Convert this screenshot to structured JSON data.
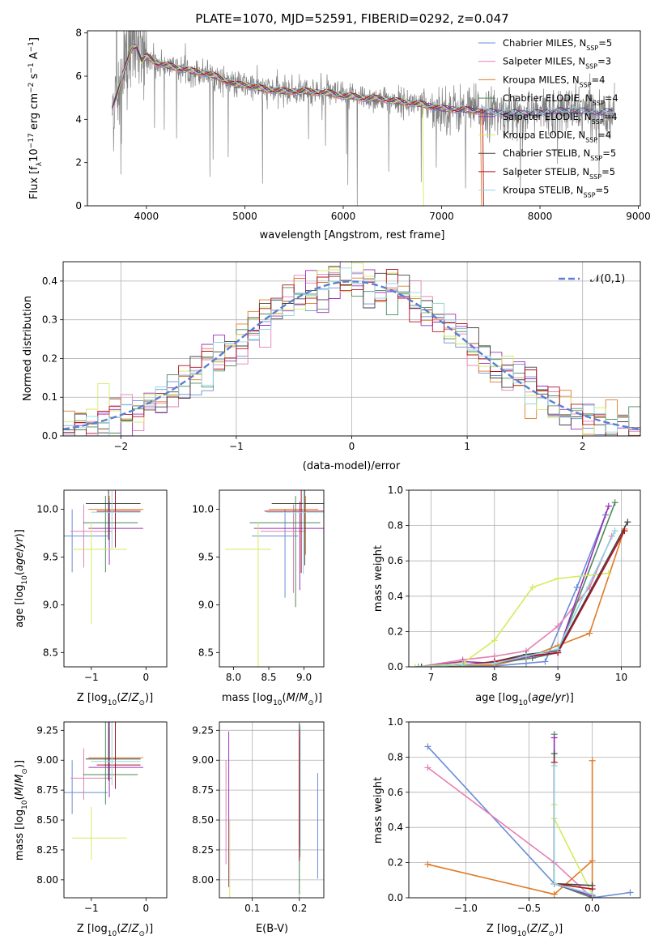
{
  "title": "PLATE=1070, MJD=52591, FIBERID=0292, z=0.047",
  "colors": {
    "Chabrier MILES": "#6a8dd8",
    "Salpeter MILES": "#e57fb5",
    "Kroupa MILES": "#e07b27",
    "Chabrier ELODIE": "#4a8a5a",
    "Salpeter ELODIE": "#9b30b8",
    "Kroupa ELODIE": "#d4ea60",
    "Chabrier STELIB": "#444444",
    "Salpeter STELIB": "#b01020",
    "Kroupa STELIB": "#90d6e0",
    "data": "#808080"
  },
  "legend_names": [
    "Chabrier MILES",
    "Salpeter MILES",
    "Kroupa MILES",
    "Chabrier ELODIE",
    "Salpeter ELODIE",
    "Kroupa ELODIE",
    "Chabrier STELIB",
    "Salpeter STELIB",
    "Kroupa STELIB"
  ],
  "legend_nssp": [
    "5",
    "3",
    "4",
    "4",
    "4",
    "4",
    "5",
    "5",
    "5"
  ],
  "chart_data": [
    {
      "id": "spectrum",
      "type": "line",
      "xlabel": "wavelength [Angstrom, rest frame]",
      "ylabel": "Flux [f_λ10^-17 erg cm^-2 s^-1 A^-1]",
      "xlim": [
        3400,
        9020
      ],
      "ylim": [
        0,
        8.1
      ],
      "xticks": [
        4000,
        5000,
        6000,
        7000,
        8000,
        9000
      ],
      "yticks": [
        0,
        2,
        4,
        6,
        8
      ],
      "legend_position": "upper right",
      "continuum": {
        "x": [
          3650,
          3700,
          3800,
          3850,
          3900,
          3950,
          4000,
          4050,
          4100,
          4200,
          4300,
          4400,
          4500,
          4600,
          4700,
          4800,
          4900,
          5000,
          5200,
          5400,
          5600,
          5800,
          6000,
          6200,
          6400,
          6600,
          6800,
          7000,
          7200,
          7400,
          7600,
          7800,
          8000,
          8200,
          8400,
          8600,
          8760
        ],
        "y": [
          4.6,
          5.2,
          6.6,
          7.3,
          7.4,
          6.7,
          6.9,
          6.8,
          6.6,
          6.5,
          6.4,
          6.3,
          6.2,
          6.15,
          6.0,
          5.8,
          5.6,
          5.6,
          5.4,
          5.3,
          5.3,
          5.25,
          5.1,
          5.0,
          4.95,
          4.8,
          4.7,
          4.5,
          4.45,
          4.4,
          4.3,
          4.3,
          4.3,
          4.4,
          4.4,
          4.3,
          4.4
        ]
      },
      "model_end_wavelength": {
        "Salpeter STELIB": 7420,
        "Kroupa ELODIE": 6810,
        "Kroupa MILES": 7400
      }
    },
    {
      "id": "residuals",
      "type": "bar",
      "xlabel": "(data-model)/error",
      "ylabel": "Normed distribution",
      "xlim": [
        -2.5,
        2.5
      ],
      "ylim": [
        0,
        0.45
      ],
      "xticks": [
        -2,
        -1,
        0,
        1,
        2
      ],
      "yticks": [
        0,
        0.1,
        0.2,
        0.3,
        0.4
      ],
      "bin_width": 0.1,
      "legend": "𝒩(0,1)"
    },
    {
      "id": "age-vs-Z",
      "type": "scatter",
      "xlabel": "Z [log10(Z/Z⊙)]",
      "ylabel": "age  [log10(age/yr)]",
      "xlim": [
        -1.5,
        0.38
      ],
      "ylim": [
        8.35,
        10.2
      ],
      "xticks": [
        -1,
        0
      ],
      "yticks": [
        8.5,
        9.0,
        9.5,
        10.0
      ]
    },
    {
      "id": "age-vs-mass",
      "type": "scatter",
      "xlabel": "mass [log10(M/M⊙)]",
      "ylabel": "",
      "xlim": [
        7.8,
        9.28
      ],
      "ylim": [
        8.35,
        10.2
      ],
      "xticks": [
        8.0,
        8.5,
        9.0
      ],
      "yticks": [
        8.5,
        9.0,
        9.5,
        10.0
      ]
    },
    {
      "id": "weight-vs-age",
      "type": "line",
      "xlabel": "age  [log10(age/yr)]",
      "ylabel": "mass weight",
      "xlim": [
        6.65,
        10.3
      ],
      "ylim": [
        0,
        1.0
      ],
      "xticks": [
        7,
        8,
        9,
        10
      ],
      "yticks": [
        0,
        0.2,
        0.4,
        0.6,
        0.8,
        1.0
      ]
    },
    {
      "id": "mass-vs-Z",
      "type": "scatter",
      "xlabel": "Z [log10(Z/Z⊙)]",
      "ylabel": "mass [log10(M/M⊙)]",
      "xlim": [
        -1.5,
        0.38
      ],
      "ylim": [
        7.85,
        9.32
      ],
      "xticks": [
        -1,
        0
      ],
      "yticks": [
        8.0,
        8.25,
        8.5,
        8.75,
        9.0,
        9.25
      ]
    },
    {
      "id": "mass-vs-ebv",
      "type": "scatter",
      "xlabel": "E(B-V)",
      "ylabel": "",
      "xlim": [
        0.03,
        0.252
      ],
      "ylim": [
        7.85,
        9.32
      ],
      "xticks": [
        0.1,
        0.2
      ],
      "yticks": [
        8.0,
        8.25,
        8.5,
        8.75,
        9.0,
        9.25
      ]
    },
    {
      "id": "weight-vs-Z",
      "type": "line",
      "xlabel": "Z [log10(Z/Z⊙)]",
      "ylabel": "mass weight",
      "xlim": [
        -1.45,
        0.38
      ],
      "ylim": [
        0,
        1.0
      ],
      "xticks": [
        -1.0,
        -0.5,
        0.0
      ],
      "yticks": [
        0,
        0.2,
        0.4,
        0.6,
        0.8,
        1.0
      ]
    }
  ],
  "models": [
    {
      "name": "Chabrier MILES",
      "Z": [
        -1.2,
        0.5,
        0.25
      ],
      "age": [
        9.72,
        0.38,
        0.28
      ],
      "mass": [
        8.73,
        0.18,
        0.27
      ],
      "ebv": [
        0.235,
        0.0,
        0.28
      ],
      "ages": [
        6.85,
        7.5,
        8.0,
        8.5,
        8.8,
        9.3,
        9.75
      ],
      "wts": [
        0.0,
        0.005,
        0.005,
        0.02,
        0.03,
        0.45,
        0.86
      ],
      "Zs": [
        -1.3,
        -0.3,
        0.0,
        0.3,
        0.0
      ],
      "zw": [
        0.86,
        0.08,
        0.0,
        0.03,
        0.0
      ]
    },
    {
      "name": "Salpeter MILES",
      "Z": [
        -1.0,
        0.38,
        0.15
      ],
      "age": [
        9.77,
        0.38,
        0.28
      ],
      "mass": [
        8.85,
        0.18,
        0.25
      ],
      "ebv": [
        0.04,
        0.0,
        0.2
      ],
      "ages": [
        6.8,
        7.5,
        8.0,
        8.5,
        9.0,
        9.5,
        9.85
      ],
      "wts": [
        0.0,
        0.04,
        0.06,
        0.09,
        0.23,
        0.45,
        0.74
      ],
      "Zs": [
        -1.3,
        -0.3,
        0.0,
        0.0
      ],
      "zw": [
        0.74,
        0.2,
        0.0,
        0.0
      ]
    },
    {
      "name": "Kroupa MILES",
      "Z": [
        -0.55,
        0.5,
        0.3
      ],
      "age": [
        10.0,
        0.28,
        0.14
      ],
      "mass": [
        9.02,
        0.2,
        0.26
      ],
      "ebv": [
        0.2,
        0.0,
        0.29
      ],
      "ages": [
        6.8,
        7.2,
        8.0,
        8.5,
        9.0,
        9.5,
        10.05
      ],
      "wts": [
        0.0,
        0.005,
        0.01,
        0.05,
        0.12,
        0.19,
        0.78
      ],
      "Zs": [
        -1.3,
        -0.3,
        0.0,
        0.0,
        0.0
      ],
      "zw": [
        0.19,
        0.02,
        0.21,
        0.78,
        0.01
      ]
    },
    {
      "name": "Chabrier ELODIE",
      "Z": [
        -0.65,
        0.5,
        0.35
      ],
      "age": [
        9.86,
        0.52,
        0.28
      ],
      "mass": [
        8.88,
        0.25,
        0.5
      ],
      "ebv": [
        0.2,
        0.0,
        0.38
      ],
      "ages": [
        6.8,
        7.5,
        8.0,
        8.6,
        9.0,
        9.9
      ],
      "wts": [
        0.0,
        0.01,
        0.02,
        0.05,
        0.08,
        0.93
      ],
      "Zs": [
        -0.3,
        -0.3,
        0.0
      ],
      "zw": [
        0.93,
        0.08,
        0.0
      ]
    },
    {
      "name": "Salpeter ELODIE",
      "Z": [
        -0.55,
        0.5,
        0.3
      ],
      "age": [
        9.8,
        0.38,
        0.28
      ],
      "mass": [
        8.94,
        0.25,
        0.5
      ],
      "ebv": [
        0.05,
        0.0,
        0.9
      ],
      "ages": [
        6.8,
        7.5,
        8.0,
        8.6,
        9.0,
        9.8
      ],
      "wts": [
        0.0,
        0.03,
        0.02,
        0.06,
        0.08,
        0.91
      ],
      "Zs": [
        -0.3,
        -0.3,
        0.0
      ],
      "zw": [
        0.91,
        0.08,
        0.01
      ]
    },
    {
      "name": "Kroupa ELODIE",
      "Z": [
        -0.85,
        0.5,
        0.25
      ],
      "age": [
        9.58,
        0.78,
        0.28
      ],
      "mass": [
        8.35,
        0.18,
        0.26
      ],
      "ebv": [
        0.05,
        0.0,
        0.2
      ],
      "ages": [
        6.75,
        7.5,
        8.0,
        8.6,
        9.0,
        9.8
      ],
      "wts": [
        0.0,
        0.02,
        0.15,
        0.45,
        0.5,
        0.53
      ],
      "Zs": [
        -0.3,
        -0.3,
        0.0
      ],
      "zw": [
        0.53,
        0.45,
        0.02
      ]
    },
    {
      "name": "Chabrier STELIB",
      "Z": [
        -0.6,
        0.5,
        0.36
      ],
      "age": [
        10.06,
        0.38,
        0.28
      ],
      "mass": [
        9.01,
        0.18,
        0.5
      ],
      "ebv": [
        0.2,
        0.0,
        0.3
      ],
      "ages": [
        6.85,
        7.5,
        8.0,
        8.5,
        9.0,
        10.1
      ],
      "wts": [
        0.0,
        0.01,
        0.03,
        0.07,
        0.09,
        0.82
      ],
      "Zs": [
        -0.3,
        -0.3,
        0.0
      ],
      "zw": [
        0.82,
        0.08,
        0.07
      ]
    },
    {
      "name": "Salpeter STELIB",
      "Z": [
        -0.5,
        0.4,
        0.3
      ],
      "age": [
        9.98,
        0.38,
        0.28
      ],
      "mass": [
        8.96,
        0.2,
        0.5
      ],
      "ebv": [
        0.2,
        0.0,
        0.28
      ],
      "ages": [
        6.8,
        7.5,
        8.0,
        8.5,
        9.0,
        10.05
      ],
      "wts": [
        0.0,
        0.01,
        0.03,
        0.06,
        0.08,
        0.77
      ],
      "Zs": [
        -0.3,
        -0.3,
        0.0
      ],
      "zw": [
        0.77,
        0.08,
        0.05
      ]
    },
    {
      "name": "Kroupa STELIB",
      "Z": [
        -0.55,
        0.45,
        0.33
      ],
      "age": [
        9.97,
        0.38,
        0.28
      ],
      "mass": [
        8.99,
        0.2,
        0.5
      ],
      "ebv": [
        0.2,
        0.0,
        0.28
      ],
      "ages": [
        6.8,
        7.5,
        8.0,
        8.5,
        9.0,
        9.9
      ],
      "wts": [
        0.0,
        0.01,
        0.02,
        0.06,
        0.1,
        0.77
      ],
      "Zs": [
        -0.3,
        -0.3,
        0.0
      ],
      "zw": [
        0.75,
        0.08,
        0.02
      ]
    }
  ]
}
